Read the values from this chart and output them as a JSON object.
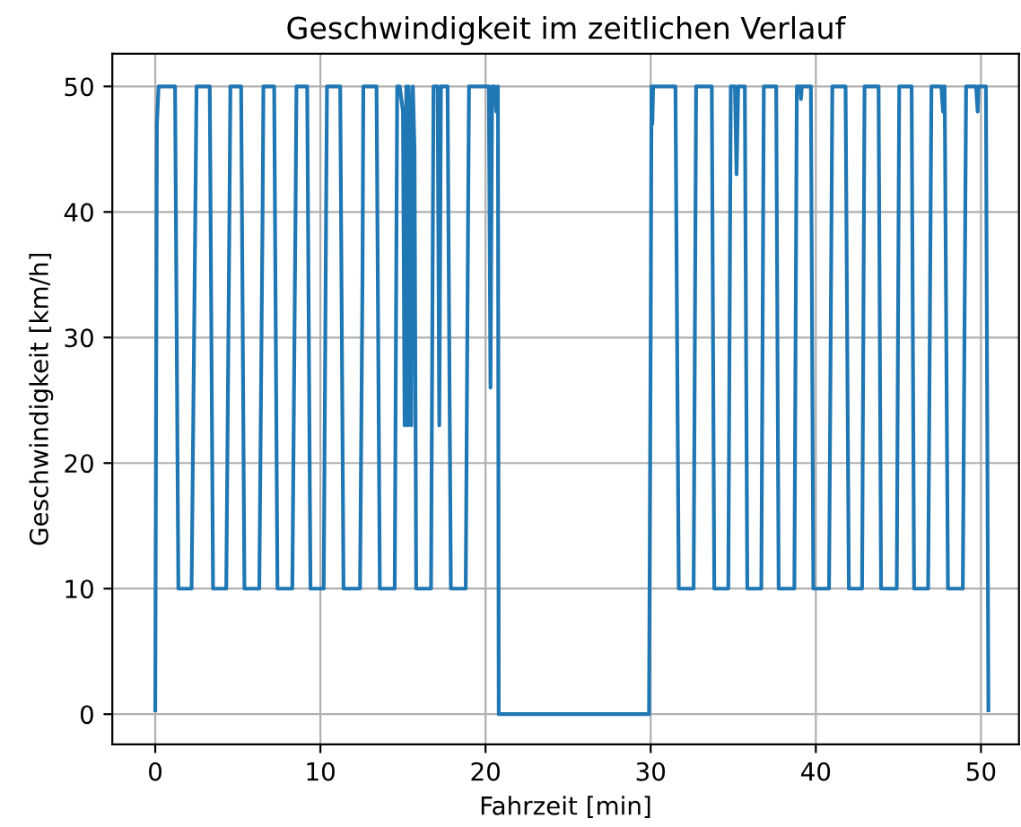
{
  "chart_data": {
    "type": "line",
    "title": "Geschwindigkeit im zeitlichen Verlauf",
    "xlabel": "Fahrzeit [min]",
    "ylabel": "Geschwindigkeit [km/h]",
    "x": [
      0,
      0.1,
      0.2,
      1.2,
      1.4,
      2.2,
      2.45,
      2.5,
      3.3,
      3.5,
      4.3,
      4.5,
      4.55,
      5.2,
      5.4,
      6.3,
      6.5,
      6.55,
      7.2,
      7.4,
      8.3,
      8.5,
      8.55,
      9.2,
      9.4,
      10.2,
      10.35,
      10.4,
      11.2,
      11.4,
      12.4,
      12.55,
      12.6,
      13.4,
      13.6,
      14.5,
      14.65,
      14.8,
      15.0,
      15.1,
      15.2,
      15.3,
      15.35,
      15.45,
      15.5,
      15.6,
      15.7,
      15.8,
      16.0,
      16.7,
      16.85,
      17.1,
      17.2,
      17.3,
      17.7,
      17.9,
      18.8,
      18.95,
      19.0,
      20.2,
      20.3,
      20.4,
      20.55,
      20.65,
      20.75,
      20.8,
      29.9,
      30.0,
      30.05,
      30.1,
      30.15,
      30.2,
      31.5,
      31.7,
      32.6,
      32.75,
      33.7,
      33.85,
      34.7,
      34.85,
      35.1,
      35.2,
      35.3,
      35.7,
      35.85,
      36.7,
      36.85,
      37.6,
      37.75,
      38.7,
      38.85,
      39.05,
      39.1,
      39.15,
      39.7,
      39.85,
      40.8,
      41.0,
      41.8,
      42.0,
      42.8,
      42.95,
      43.8,
      43.95,
      44.9,
      45.05,
      45.8,
      45.95,
      46.8,
      47.0,
      47.6,
      47.7,
      47.75,
      47.8,
      48.0,
      48.9,
      49.1,
      49.7,
      49.8,
      49.85,
      50.3,
      50.45
    ],
    "series": [
      {
        "color": "#1f77b4",
        "values": [
          0.3,
          47,
          50,
          50,
          10,
          10,
          43,
          50,
          50,
          10,
          10,
          41,
          50,
          50,
          10,
          10,
          40,
          50,
          50,
          10,
          10,
          41,
          50,
          50,
          10,
          10,
          41,
          50,
          50,
          10,
          10,
          35,
          50,
          50,
          10,
          10,
          50,
          50,
          48,
          23,
          50,
          23,
          50,
          45,
          23,
          50,
          45,
          10,
          10,
          10,
          50,
          50,
          23,
          50,
          50,
          10,
          10,
          41,
          50,
          50,
          26,
          50,
          50,
          48,
          50,
          0,
          0,
          30,
          50,
          47,
          50,
          50,
          50,
          10,
          10,
          50,
          50,
          10,
          10,
          50,
          50,
          43,
          50,
          50,
          10,
          10,
          50,
          50,
          10,
          10,
          50,
          50,
          49,
          50,
          50,
          10,
          10,
          50,
          50,
          10,
          10,
          50,
          50,
          10,
          10,
          50,
          50,
          10,
          10,
          50,
          50,
          48,
          50,
          50,
          10,
          10,
          50,
          50,
          48,
          50,
          50,
          0.3
        ]
      }
    ],
    "xlim": [
      -2.6,
      52.3
    ],
    "ylim": [
      -2.4,
      52.6
    ],
    "xticks": [
      0,
      10,
      20,
      30,
      40,
      50
    ],
    "yticks": [
      0,
      10,
      20,
      30,
      40,
      50
    ],
    "grid": true
  }
}
